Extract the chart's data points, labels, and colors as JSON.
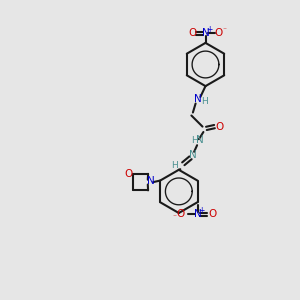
{
  "bg_color": "#e6e6e6",
  "bond_color": "#1a1a1a",
  "N_color": "#0000cc",
  "O_color": "#cc0000",
  "teal_color": "#4a9090",
  "line_width": 1.5,
  "fig_width": 3.0,
  "fig_height": 3.0,
  "dpi": 100,
  "xlim": [
    0,
    10
  ],
  "ylim": [
    0,
    10
  ]
}
